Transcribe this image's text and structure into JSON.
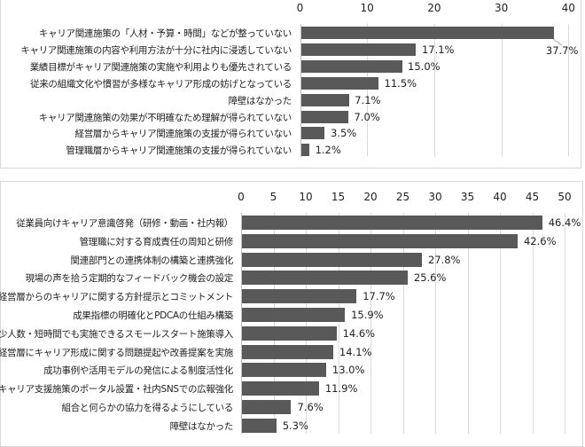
{
  "chart_data": [
    {
      "type": "bar",
      "orientation": "horizontal",
      "title": "",
      "xlabel": "",
      "ylabel": "",
      "xlim": [
        0,
        40
      ],
      "ticks": [
        "0",
        "10",
        "20",
        "30",
        "40"
      ],
      "grid": true,
      "legend": null,
      "categories": [
        "キャリア関連施策の「人材・予算・時間」などが整っていない",
        "キャリア関連施策の内容や利用方法が十分に社内に浸透していない",
        "業績目標がキャリア関連施策の実施や利用よりも優先されている",
        "従来の組織文化や慣習が多様なキャリア形成の妨げとなっている",
        "障壁はなかった",
        "キャリア関連施策の効果が不明確なため理解が得られていない",
        "経営層からキャリア関連施策の支援が得られていない",
        "管理職層からキャリア関連施策の支援が得られていない"
      ],
      "values": [
        37.7,
        17.1,
        15.0,
        11.5,
        7.1,
        7.0,
        3.5,
        1.2
      ],
      "value_labels": [
        "37.7%",
        "17.1%",
        "15.0%",
        "11.5%",
        "7.1%",
        "7.0%",
        "3.5%",
        "1.2%"
      ],
      "bar_color": "#595959"
    },
    {
      "type": "bar",
      "orientation": "horizontal",
      "title": "",
      "xlabel": "",
      "ylabel": "",
      "xlim": [
        0,
        50
      ],
      "ticks": [
        "0",
        "5",
        "10",
        "15",
        "20",
        "25",
        "30",
        "35",
        "40",
        "45",
        "50"
      ],
      "grid": true,
      "legend": null,
      "categories": [
        "従業員向けキャリア意識啓発（研修・動画・社内報）",
        "管理職に対する育成責任の周知と研修",
        "関連部門との連携体制の構築と連携強化",
        "現場の声を拾う定期的なフィードバック機会の設定",
        "経営層からのキャリアに関する方針提示とコミットメント",
        "成果指標の明確化とPDCAの仕組み構築",
        "少人数・短時間でも実施できるスモールスタート施策導入",
        "経営層にキャリア形成に関する問題提起や改善提案を実施",
        "成功事例や活用モデルの発信による制度活性化",
        "キャリア支援施策のポータル設置・社内SNSでの広報強化",
        "組合と何らかの協力を得るようにしている",
        "障壁はなかった"
      ],
      "values": [
        46.4,
        42.6,
        27.8,
        25.6,
        17.7,
        15.9,
        14.6,
        14.1,
        13.0,
        11.9,
        7.6,
        5.3
      ],
      "value_labels": [
        "46.4%",
        "42.6%",
        "27.8%",
        "25.6%",
        "17.7%",
        "15.9%",
        "14.6%",
        "14.1%",
        "13.0%",
        "11.9%",
        "7.6%",
        "5.3%"
      ],
      "bar_color": "#595959"
    }
  ]
}
